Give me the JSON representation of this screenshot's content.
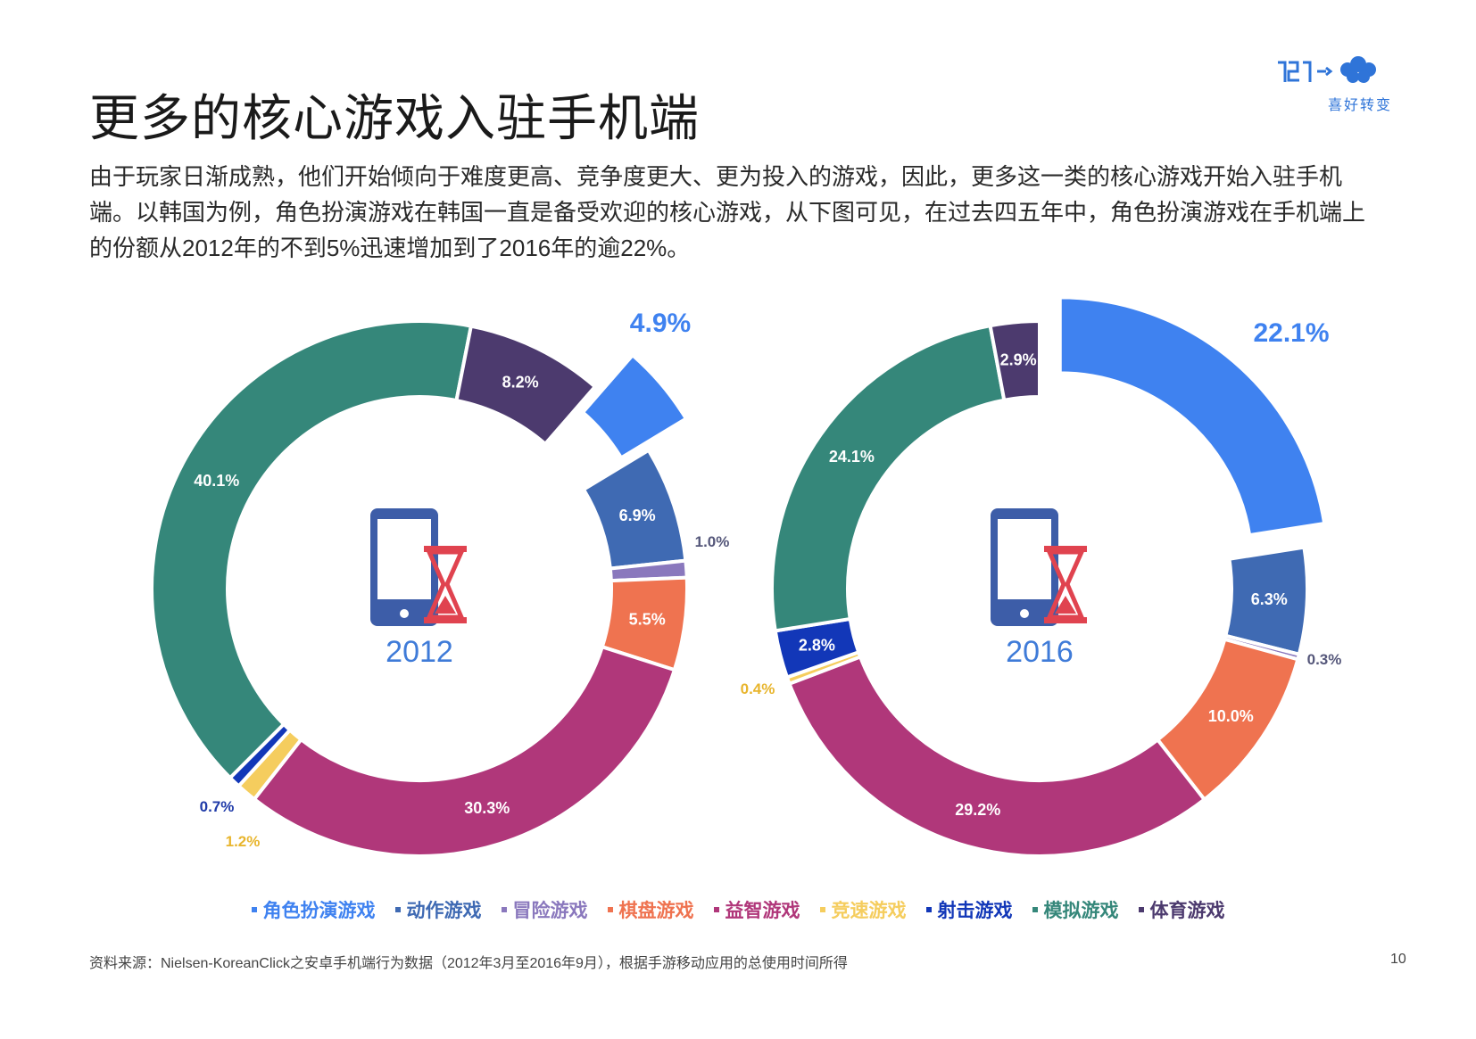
{
  "page": {
    "title": "更多的核心游戏入驻手机端",
    "description": "由于玩家日渐成熟，他们开始倾向于难度更高、竞争度更大、更为投入的游戏，因此，更多这一类的核心游戏开始入驻手机端。以韩国为例，角色扮演游戏在韩国一直是备受欢迎的核心游戏，从下图可见，在过去四五年中，角色扮演游戏在手机端上的份额从2012年的不到5%迅速增加到了2016年的逾22%。",
    "logo_text": "喜好转变",
    "source": "资料来源：Nielsen-KoreanClick之安卓手机端行为数据（2012年3月至2016年9月），根据手游移动应用的总使用时间所得",
    "page_number": "10"
  },
  "chart_data": [
    {
      "type": "pie",
      "year_label": "2012",
      "categories": [
        "角色扮演游戏",
        "动作游戏",
        "冒险游戏",
        "棋盘游戏",
        "益智游戏",
        "竞速游戏",
        "射击游戏",
        "模拟游戏",
        "体育游戏"
      ],
      "values": [
        4.9,
        6.9,
        1.0,
        5.5,
        30.3,
        1.2,
        0.7,
        40.1,
        8.2
      ],
      "labels": [
        "4.9%",
        "6.9%",
        "1.0%",
        "5.5%",
        "30.3%",
        "1.2%",
        "0.7%",
        "40.1%",
        "8.2%"
      ],
      "highlighted": "角色扮演游戏"
    },
    {
      "type": "pie",
      "year_label": "2016",
      "categories": [
        "角色扮演游戏",
        "动作游戏",
        "冒险游戏",
        "棋盘游戏",
        "益智游戏",
        "竞速游戏",
        "射击游戏",
        "模拟游戏",
        "体育游戏"
      ],
      "values": [
        22.1,
        6.3,
        0.3,
        10.0,
        29.2,
        0.4,
        2.8,
        24.1,
        2.9
      ],
      "labels": [
        "22.1%",
        "6.3%",
        "0.3%",
        "10.0%",
        "29.2%",
        "0.4%",
        "2.8%",
        "24.1%",
        "2.9%"
      ],
      "highlighted": "角色扮演游戏"
    }
  ],
  "legend": [
    {
      "label": "角色扮演游戏",
      "color": "#3f82f0"
    },
    {
      "label": "动作游戏",
      "color": "#3f6ab3"
    },
    {
      "label": "冒险游戏",
      "color": "#8a78bd"
    },
    {
      "label": "棋盘游戏",
      "color": "#ef7350"
    },
    {
      "label": "益智游戏",
      "color": "#b0377a"
    },
    {
      "label": "竞速游戏",
      "color": "#f5cd5e"
    },
    {
      "label": "射击游戏",
      "color": "#1237b8"
    },
    {
      "label": "模拟游戏",
      "color": "#35877a"
    },
    {
      "label": "体育游戏",
      "color": "#4c3a6e"
    }
  ]
}
